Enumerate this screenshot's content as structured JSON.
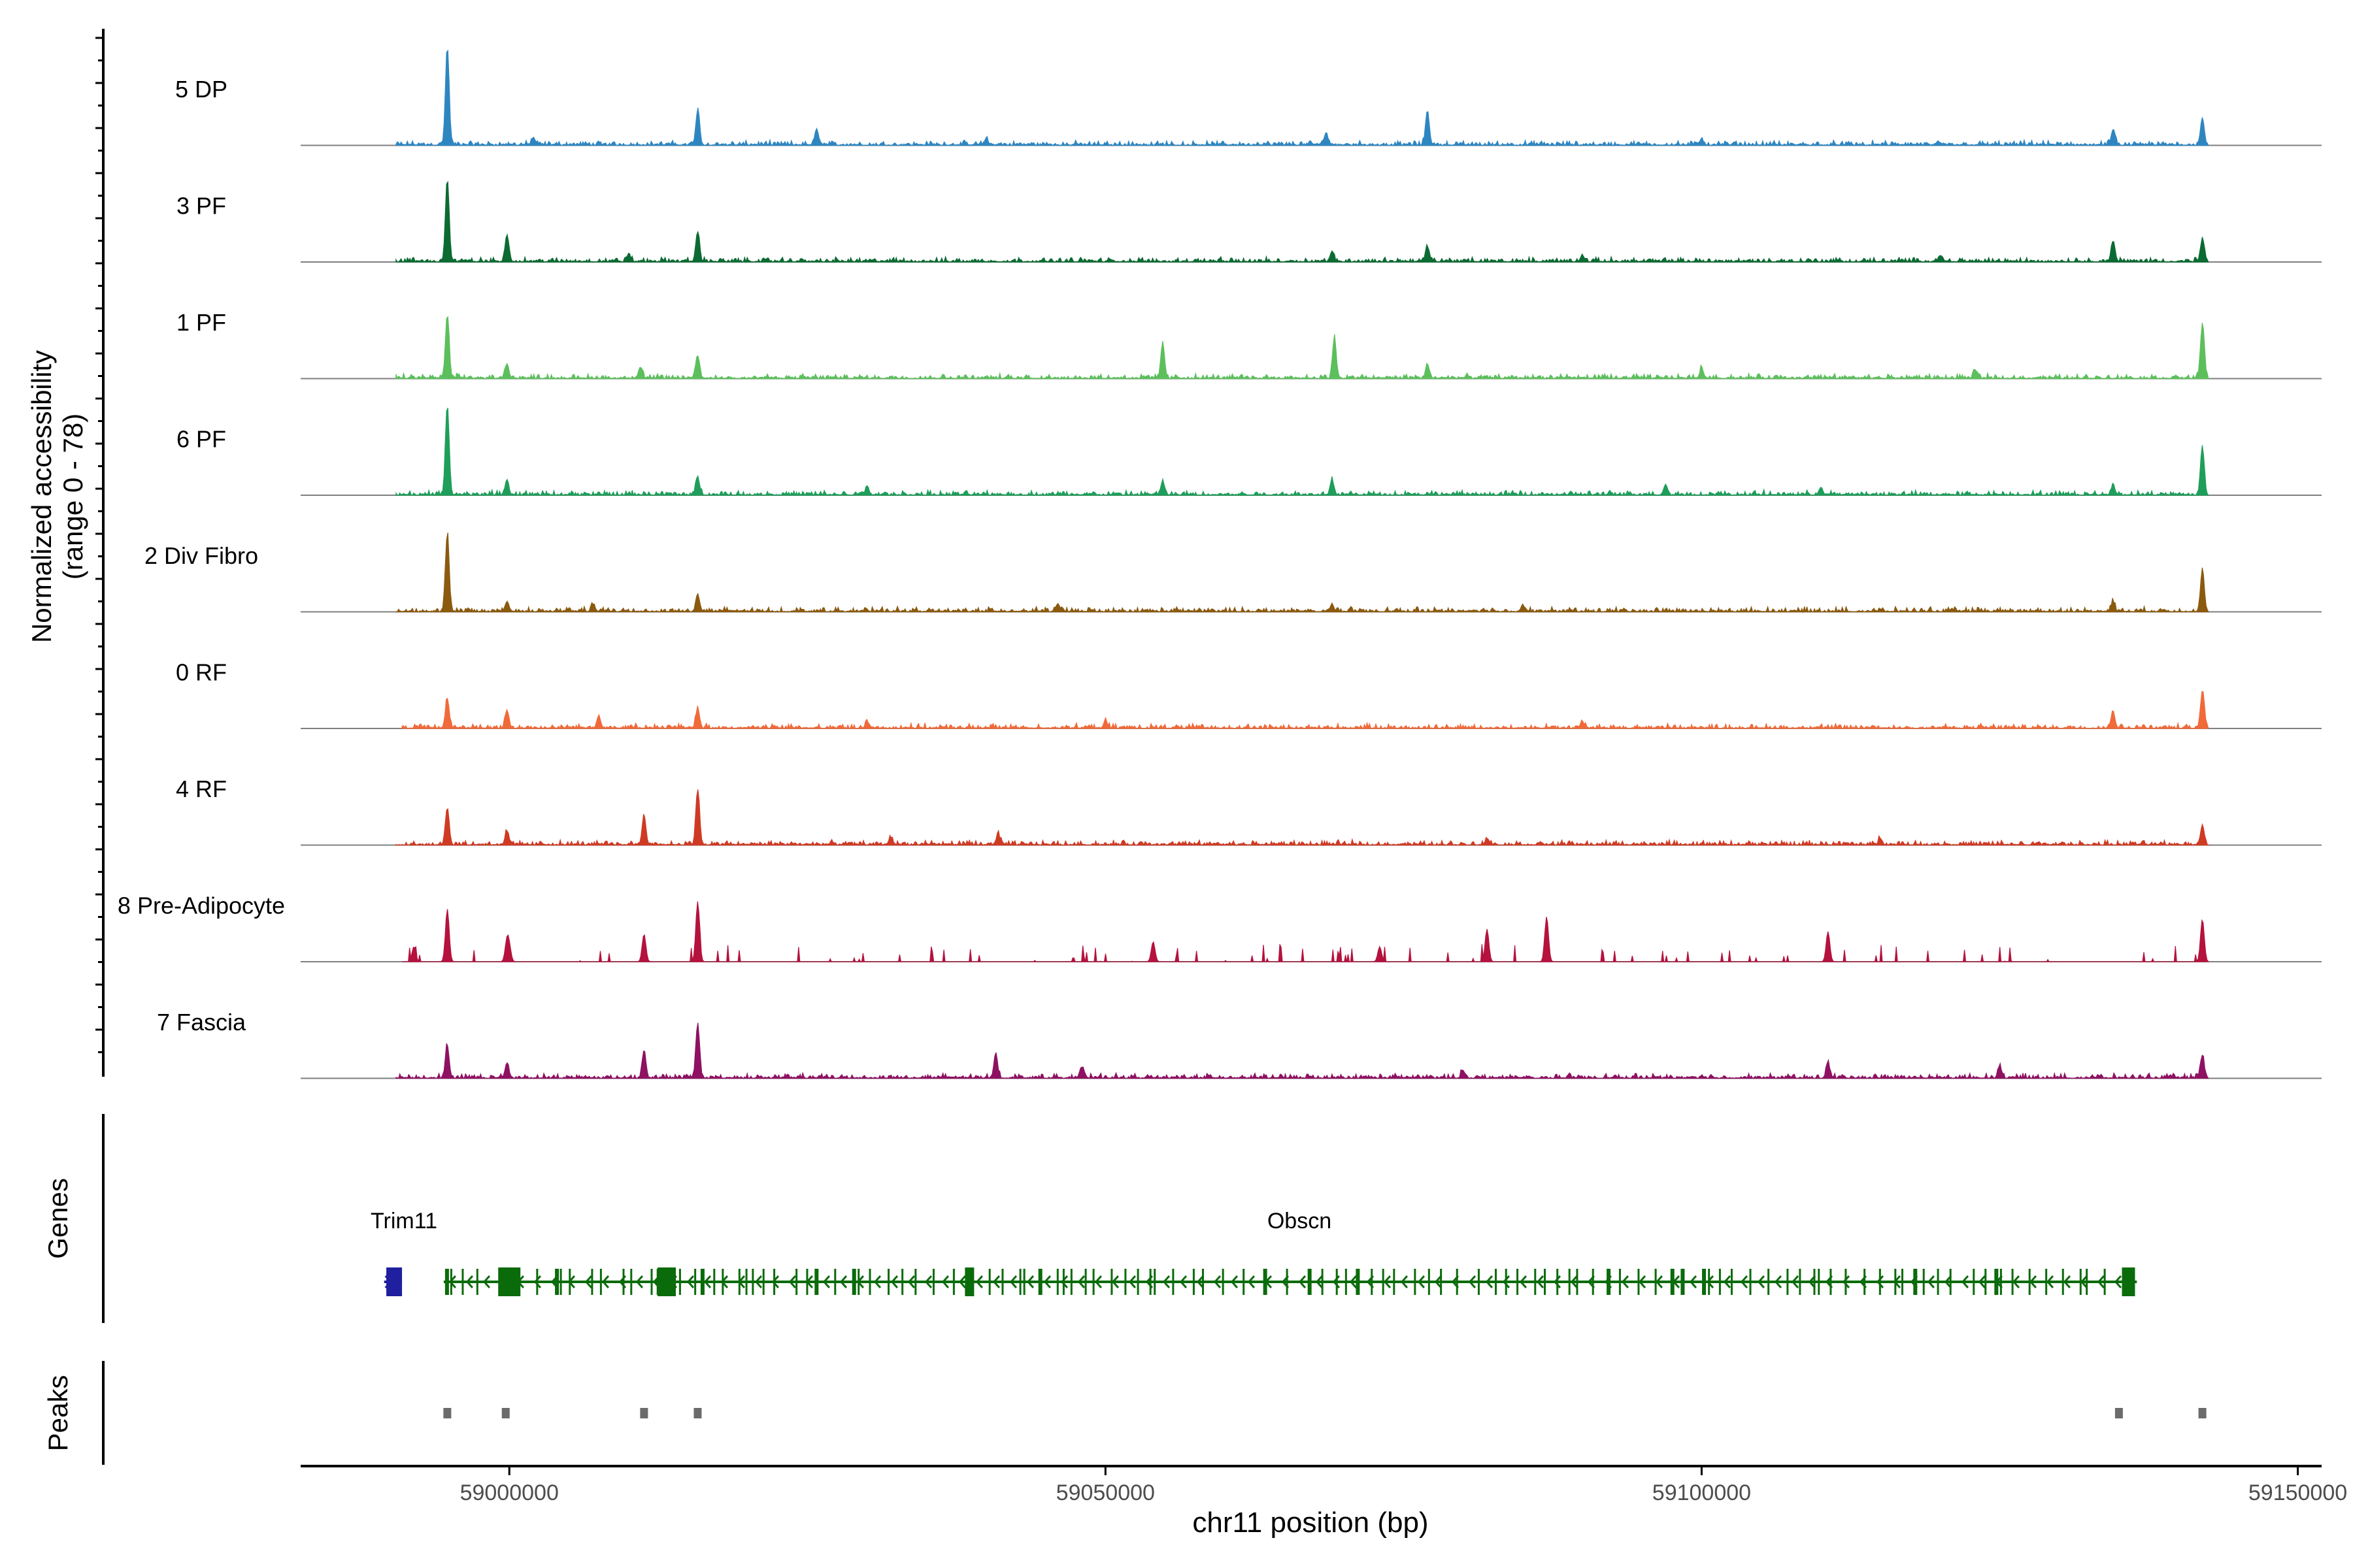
{
  "chart_data": {
    "type": "area",
    "title": "",
    "xlabel": "chr11 position (bp)",
    "ylabel": "Normalized accessibility\n(range 0 - 78)",
    "xlim": [
      58982500,
      59152000
    ],
    "ylim": [
      0,
      78
    ],
    "xticks": [
      59000000,
      59050000,
      59100000,
      59150000
    ],
    "xtick_labels": [
      "59000000",
      "59050000",
      "59100000",
      "59150000"
    ],
    "tracks": [
      {
        "name": "5 DP",
        "color": "#2E86C1",
        "start": 58990500,
        "end": 59142500,
        "peaks": [
          [
            58994800,
            78
          ],
          [
            59015800,
            28
          ],
          [
            59025800,
            12
          ],
          [
            59068500,
            10
          ],
          [
            59077000,
            28
          ],
          [
            59134500,
            12
          ],
          [
            59142000,
            22
          ],
          [
            59002000,
            6
          ],
          [
            59040000,
            5
          ],
          [
            59100000,
            5
          ]
        ]
      },
      {
        "name": "3 PF",
        "color": "#0B6B32",
        "start": 58990500,
        "end": 59142500,
        "peaks": [
          [
            58994800,
            66
          ],
          [
            58999800,
            22
          ],
          [
            59015800,
            24
          ],
          [
            59069000,
            8
          ],
          [
            59077000,
            12
          ],
          [
            59134500,
            16
          ],
          [
            59142000,
            18
          ],
          [
            59010000,
            6
          ],
          [
            59090000,
            5
          ],
          [
            59120000,
            5
          ]
        ]
      },
      {
        "name": "1 PF",
        "color": "#5CBF5C",
        "start": 58990500,
        "end": 59142500,
        "peaks": [
          [
            58994800,
            50
          ],
          [
            58999800,
            12
          ],
          [
            59015800,
            18
          ],
          [
            59011000,
            8
          ],
          [
            59054800,
            28
          ],
          [
            59069200,
            32
          ],
          [
            59077000,
            10
          ],
          [
            59142000,
            44
          ],
          [
            59100000,
            8
          ],
          [
            59123000,
            6
          ]
        ]
      },
      {
        "name": "6 PF",
        "color": "#1E9E5A",
        "start": 58990500,
        "end": 59142500,
        "peaks": [
          [
            58994800,
            72
          ],
          [
            58999800,
            12
          ],
          [
            59015800,
            14
          ],
          [
            59054800,
            10
          ],
          [
            59069000,
            12
          ],
          [
            59142000,
            38
          ],
          [
            59097000,
            8
          ],
          [
            59134500,
            8
          ],
          [
            59030000,
            6
          ],
          [
            59110000,
            6
          ]
        ]
      },
      {
        "name": "2 Div Fibro",
        "color": "#8B5A0F",
        "start": 58990500,
        "end": 59142500,
        "peaks": [
          [
            58994800,
            62
          ],
          [
            58999800,
            8
          ],
          [
            59015800,
            14
          ],
          [
            59007000,
            6
          ],
          [
            59142000,
            34
          ],
          [
            59134500,
            8
          ],
          [
            59046000,
            6
          ],
          [
            59069000,
            6
          ],
          [
            59085000,
            5
          ]
        ]
      },
      {
        "name": "0 RF",
        "color": "#F06A3A",
        "start": 58991000,
        "end": 59142500,
        "peaks": [
          [
            58994800,
            24
          ],
          [
            58999800,
            14
          ],
          [
            59015800,
            16
          ],
          [
            59007500,
            10
          ],
          [
            59134500,
            14
          ],
          [
            59142000,
            30
          ],
          [
            59050000,
            5
          ],
          [
            59090000,
            5
          ],
          [
            59030000,
            5
          ]
        ]
      },
      {
        "name": "4 RF",
        "color": "#CF3A24",
        "start": 58990500,
        "end": 59142500,
        "peaks": [
          [
            58994800,
            30
          ],
          [
            58999800,
            10
          ],
          [
            59011300,
            24
          ],
          [
            59015800,
            44
          ],
          [
            59032000,
            6
          ],
          [
            59041000,
            8
          ],
          [
            59142000,
            16
          ],
          [
            59082000,
            5
          ],
          [
            59115000,
            5
          ]
        ]
      },
      {
        "name": "8 Pre-Adipocyte",
        "color": "#B5123E",
        "start": 58991000,
        "end": 59142500,
        "peaks": [
          [
            58994800,
            42
          ],
          [
            58999800,
            16
          ],
          [
            59015800,
            48
          ],
          [
            59011300,
            22
          ],
          [
            59087000,
            36
          ],
          [
            59110600,
            24
          ],
          [
            59142000,
            34
          ],
          [
            59082000,
            26
          ],
          [
            59073000,
            12
          ],
          [
            59054000,
            16
          ],
          [
            58992000,
            12
          ],
          [
            59000000,
            10
          ]
        ]
      },
      {
        "name": "7 Fascia",
        "color": "#8E1162",
        "start": 58990500,
        "end": 59142500,
        "peaks": [
          [
            58994800,
            26
          ],
          [
            58999800,
            12
          ],
          [
            59011300,
            22
          ],
          [
            59015800,
            44
          ],
          [
            59040800,
            20
          ],
          [
            59048000,
            8
          ],
          [
            59110600,
            12
          ],
          [
            59142000,
            18
          ],
          [
            59125000,
            10
          ],
          [
            59080000,
            6
          ]
        ]
      }
    ],
    "genes": [
      {
        "name": "Trim11",
        "color": "#1F1FA0",
        "strand": "+",
        "start": 58989500,
        "end": 58991000
      },
      {
        "name": "Obscn",
        "color": "#0A6B0A",
        "strand": "-",
        "start": 58994500,
        "end": 59136500
      }
    ],
    "peak_regions": [
      58994800,
      58999700,
      59011300,
      59015800,
      59135000,
      59142000
    ],
    "panel_labels": {
      "genes": "Genes",
      "peaks": "Peaks"
    }
  }
}
